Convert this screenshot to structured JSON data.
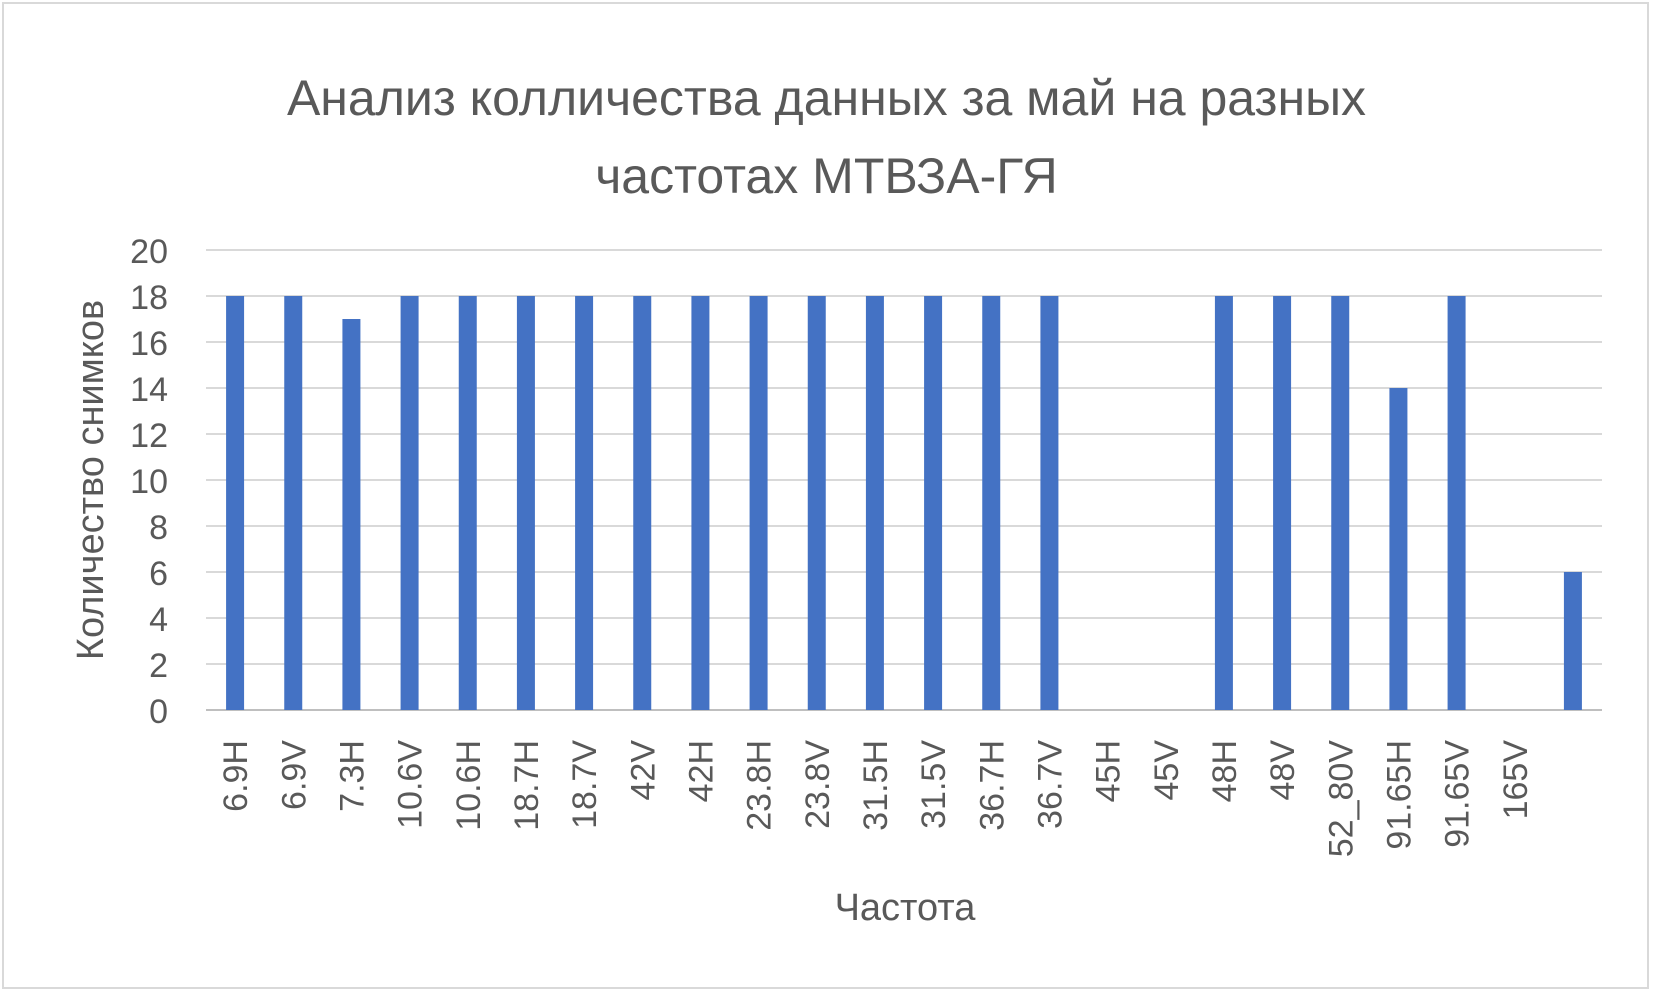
{
  "chart_data": {
    "type": "bar",
    "title_lines": [
      "Анализ колличества данных за май на разных",
      "частотах МТВЗА-ГЯ"
    ],
    "xlabel": "Частота",
    "ylabel": "Количество снимков",
    "ylim": [
      0,
      20
    ],
    "yticks": [
      0,
      2,
      4,
      6,
      8,
      10,
      12,
      14,
      16,
      18,
      20
    ],
    "grid": true,
    "legend": "none",
    "bar_color": "#4472c4",
    "categories": [
      "6.9H",
      "6.9V",
      "7.3H",
      "10.6V",
      "10.6H",
      "18.7H",
      "18.7V",
      "42V",
      "42H",
      "23.8H",
      "23.8V",
      "31.5H",
      "31.5V",
      "36.7H",
      "36.7V",
      "45H",
      "45V",
      "48H",
      "48V",
      "52_80V",
      "91.65H",
      "91.65V",
      "165V",
      ""
    ],
    "values": [
      18,
      18,
      17,
      18,
      18,
      18,
      18,
      18,
      18,
      18,
      18,
      18,
      18,
      18,
      18,
      0,
      0,
      18,
      18,
      18,
      14,
      18,
      0,
      6
    ]
  }
}
